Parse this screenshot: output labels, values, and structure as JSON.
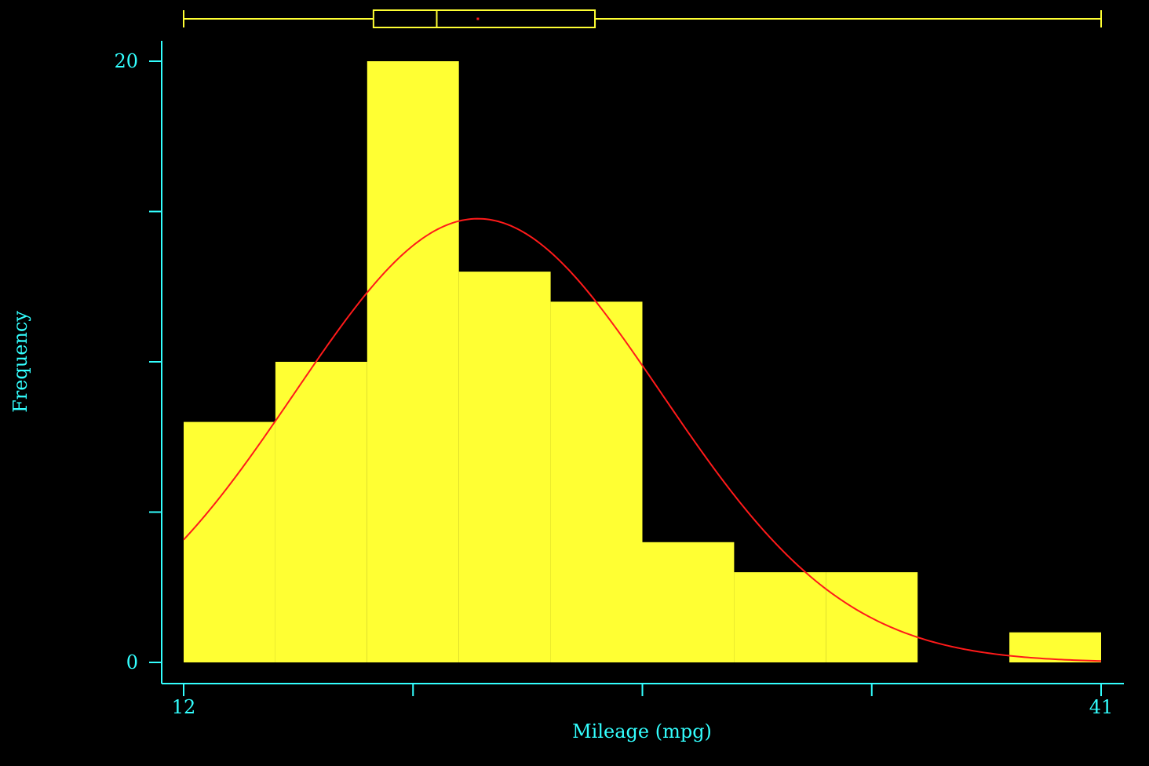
{
  "chart_data": {
    "type": "bar",
    "subtype": "histogram",
    "xlabel": "Mileage (mpg)",
    "ylabel": "Frequency",
    "xlim": [
      12,
      41
    ],
    "ylim": [
      0,
      20
    ],
    "x_ticks": [
      12,
      19.25,
      26.5,
      33.75,
      41
    ],
    "x_tick_labels": [
      "12",
      "",
      "",
      "",
      "41"
    ],
    "y_ticks": [
      0,
      5,
      10,
      15,
      20
    ],
    "y_tick_labels": [
      "0",
      "",
      "",
      "",
      "20"
    ],
    "bins": [
      {
        "start": 12,
        "end": 14.9,
        "count": 8
      },
      {
        "start": 14.9,
        "end": 17.8,
        "count": 10
      },
      {
        "start": 17.8,
        "end": 20.7,
        "count": 20
      },
      {
        "start": 20.7,
        "end": 23.6,
        "count": 13
      },
      {
        "start": 23.6,
        "end": 26.5,
        "count": 12
      },
      {
        "start": 26.5,
        "end": 29.4,
        "count": 4
      },
      {
        "start": 29.4,
        "end": 32.3,
        "count": 3
      },
      {
        "start": 32.3,
        "end": 35.2,
        "count": 3
      },
      {
        "start": 35.2,
        "end": 38.1,
        "count": 0
      },
      {
        "start": 38.1,
        "end": 41,
        "count": 1
      }
    ],
    "normal_curve": {
      "mean": 21.3,
      "sd": 5.8,
      "n": 74,
      "bin_width": 2.9
    },
    "boxplot": {
      "min": 12,
      "q1": 18,
      "median": 20,
      "mean": 21.3,
      "q3": 25,
      "max": 41
    },
    "colors": {
      "background": "#000000",
      "bars": "#ffff33",
      "axis": "#33ffff",
      "curve": "#ff1a1a",
      "boxplot": "#ffff33",
      "mean_marker": "#ff1a1a"
    },
    "grid": false
  }
}
